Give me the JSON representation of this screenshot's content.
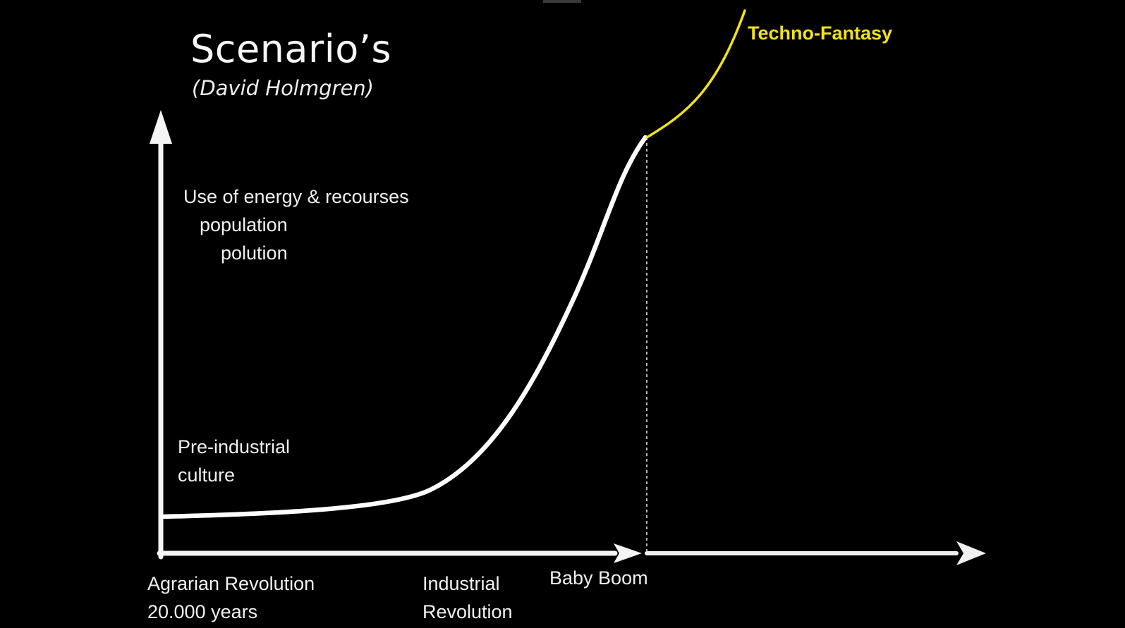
{
  "title": "Scenario’s",
  "subtitle": "(David Holmgren)",
  "y_axis_lines": [
    "Use of energy & recourses",
    "population",
    "polution"
  ],
  "phase_labels": {
    "pre_industrial_line1": "Pre-industrial",
    "pre_industrial_line2": "culture",
    "agrarian_line1": "Agrarian Revolution",
    "agrarian_line2": "20.000 years",
    "industrial_line1": "Industrial",
    "industrial_line2": "Revolution",
    "baby_boom": "Baby Boom"
  },
  "scenario": {
    "label": "Techno-Fantasy",
    "color": "#f2e11b"
  },
  "colors": {
    "background": "#000000",
    "axes": "#f5f5f5",
    "curve": "#ffffff"
  }
}
